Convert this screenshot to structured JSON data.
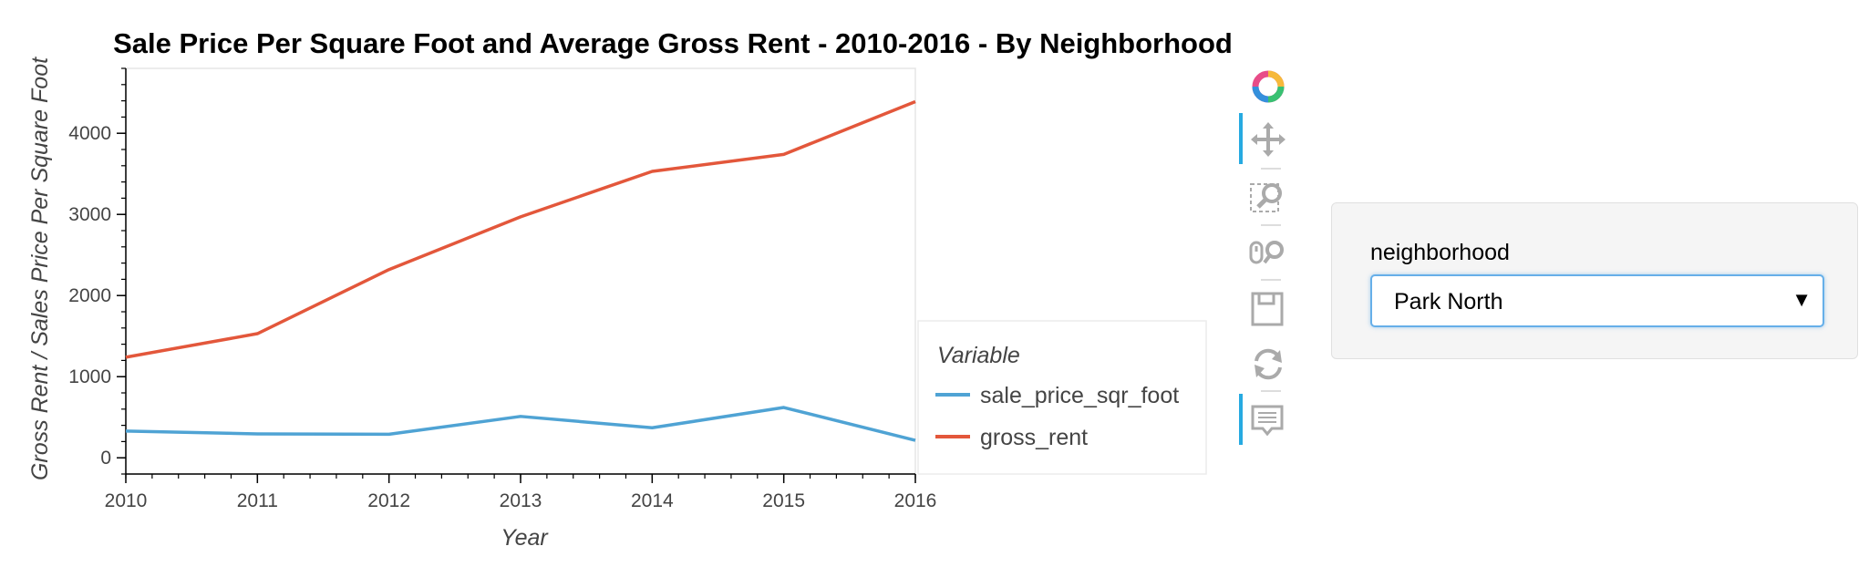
{
  "chart_data": {
    "type": "line",
    "title": "Sale Price Per Square Foot and Average Gross Rent - 2010-2016 - By Neighborhood",
    "xlabel": "Year",
    "ylabel": "Gross Rent / Sales Price Per Square Foot",
    "x": [
      2010,
      2011,
      2012,
      2013,
      2014,
      2015,
      2016
    ],
    "xlim": [
      2010,
      2016
    ],
    "ylim": [
      -200,
      4800
    ],
    "x_ticks": [
      "2010",
      "2011",
      "2012",
      "2013",
      "2014",
      "2015",
      "2016"
    ],
    "y_ticks": [
      "0",
      "1000",
      "2000",
      "3000",
      "4000"
    ],
    "y_tick_values": [
      0,
      1000,
      2000,
      3000,
      4000
    ],
    "grid": false,
    "legend": {
      "title": "Variable",
      "placement": "right"
    },
    "series": [
      {
        "name": "sale_price_sqr_foot",
        "color": "#4fa3d4",
        "values": [
          330,
          295,
          290,
          510,
          370,
          620,
          215
        ]
      },
      {
        "name": "gross_rent",
        "color": "#e3573b",
        "values": [
          1240,
          1530,
          2320,
          2970,
          3530,
          3740,
          4390
        ]
      }
    ]
  },
  "toolbar": {
    "tools": [
      {
        "name": "bokeh-logo-icon",
        "active": false
      },
      {
        "name": "pan-icon",
        "active": true
      },
      {
        "name": "box-zoom-icon",
        "active": false
      },
      {
        "name": "wheel-zoom-icon",
        "active": false
      },
      {
        "name": "save-icon",
        "active": false
      },
      {
        "name": "reset-icon",
        "active": false
      },
      {
        "name": "hover-icon",
        "active": true
      }
    ],
    "accent_color": "#26aae1"
  },
  "widget": {
    "label": "neighborhood",
    "selected": "Park North"
  }
}
